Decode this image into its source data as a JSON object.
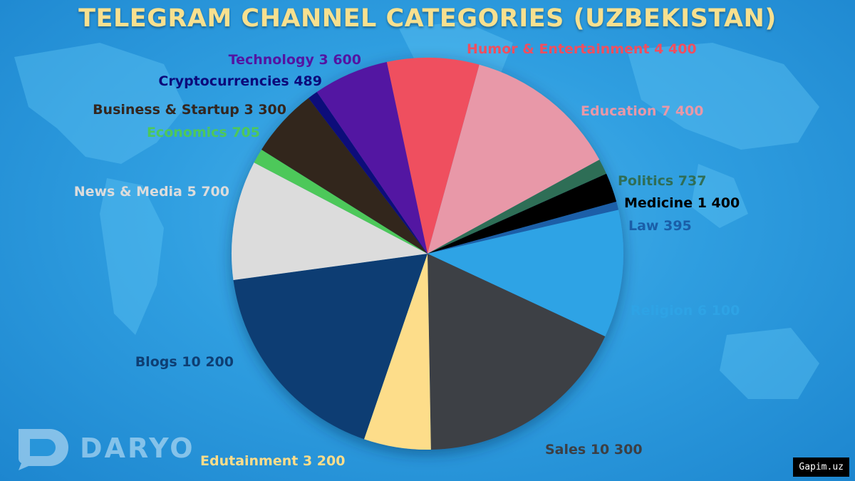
{
  "header": {
    "title": "TELEGRAM CHANNEL CATEGORIES (UZBEKISTAN)"
  },
  "chart_data": {
    "type": "pie",
    "title": "TELEGRAM CHANNEL CATEGORIES (UZBEKISTAN)",
    "slices": [
      {
        "name": "Humor & Entertainment",
        "value": 4400,
        "label": "Humor & Entertainment 4 400",
        "color": "#ef4f5f",
        "label_color": "#ef4f5f"
      },
      {
        "name": "Education",
        "value": 7400,
        "label": "Education 7 400",
        "color": "#e898a8",
        "label_color": "#e898a8"
      },
      {
        "name": "Politics",
        "value": 737,
        "label": "Politics 737",
        "color": "#2f6e57",
        "label_color": "#2f6e57"
      },
      {
        "name": "Medicine",
        "value": 1400,
        "label": "Medicine 1 400",
        "color": "#000000",
        "label_color": "#000000"
      },
      {
        "name": "Law",
        "value": 395,
        "label": "Law 395",
        "color": "#1a5ea8",
        "label_color": "#1a5ea8"
      },
      {
        "name": "Religion",
        "value": 6100,
        "label": "Religion 6 100",
        "color": "#2ea3e5",
        "label_color": "#2ea3e5"
      },
      {
        "name": "Sales",
        "value": 10300,
        "label": "Sales 10 300",
        "color": "#3c3f44",
        "label_color": "#3c3f44"
      },
      {
        "name": "Edutainment",
        "value": 3200,
        "label": "Edutainment 3 200",
        "color": "#fddd8a",
        "label_color": "#fddd8a"
      },
      {
        "name": "Blogs",
        "value": 10200,
        "label": "Blogs 10 200",
        "color": "#0e3e73",
        "label_color": "#0e3e73"
      },
      {
        "name": "News & Media",
        "value": 5700,
        "label": "News & Media 5 700",
        "color": "#dcdcdc",
        "label_color": "#dcdcdc"
      },
      {
        "name": "Economics",
        "value": 705,
        "label": "Economics 705",
        "color": "#4ec85a",
        "label_color": "#4ec85a"
      },
      {
        "name": "Business & Startup",
        "value": 3300,
        "label": "Business & Startup 3 300",
        "color": "#33261f",
        "label_color": "#33261f"
      },
      {
        "name": "Cryptocurrencies",
        "value": 489,
        "label": "Cryptocurrencies 489",
        "color": "#0c0a7a",
        "label_color": "#0c0a7a"
      },
      {
        "name": "Technology",
        "value": 3600,
        "label": "Technology 3 600",
        "color": "#5315a2",
        "label_color": "#5315a2"
      }
    ]
  },
  "branding": {
    "logo_text": "DARYO",
    "logo_icon": "daryo-speech-bubble-icon"
  },
  "footer": {
    "source": "Gapim.uz"
  }
}
